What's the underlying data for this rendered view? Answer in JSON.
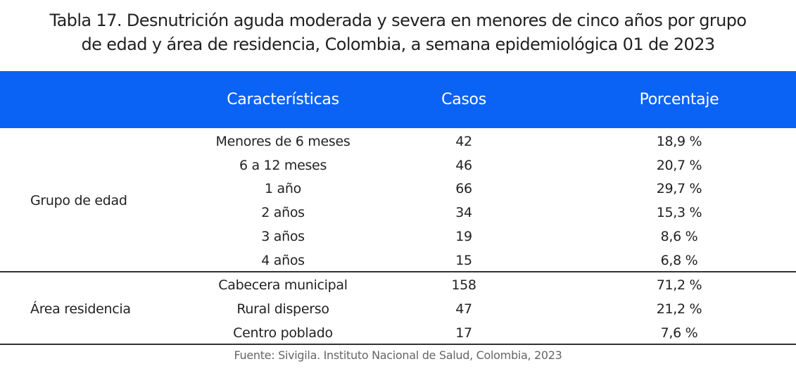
{
  "title": {
    "line1": "Tabla 17. Desnutrición aguda moderada y severa en menores de cinco años por grupo",
    "line2": "de edad y área de residencia, Colombia, a semana epidemiológica 01 de 2023"
  },
  "header": {
    "caracteristicas": "Características",
    "casos": "Casos",
    "porcentaje": "Porcentaje",
    "color": "#0a63f5"
  },
  "groups": [
    {
      "label": "Grupo de edad",
      "rows": [
        {
          "caracteristica": "Menores de 6 meses",
          "casos": "42",
          "porcentaje": "18,9 %"
        },
        {
          "caracteristica": "6 a 12 meses",
          "casos": "46",
          "porcentaje": "20,7 %"
        },
        {
          "caracteristica": "1 año",
          "casos": "66",
          "porcentaje": "29,7 %"
        },
        {
          "caracteristica": "2 años",
          "casos": "34",
          "porcentaje": "15,3 %"
        },
        {
          "caracteristica": "3 años",
          "casos": "19",
          "porcentaje": "8,6 %"
        },
        {
          "caracteristica": "4 años",
          "casos": "15",
          "porcentaje": "6,8 %"
        }
      ]
    },
    {
      "label": "Área residencia",
      "rows": [
        {
          "caracteristica": "Cabecera municipal",
          "casos": "158",
          "porcentaje": "71,2 %"
        },
        {
          "caracteristica": "Rural disperso",
          "casos": "47",
          "porcentaje": "21,2 %"
        },
        {
          "caracteristica": "Centro poblado",
          "casos": "17",
          "porcentaje": "7,6 %"
        }
      ]
    }
  ],
  "footer": "Fuente: Sivigila. Instituto Nacional de Salud, Colombia, 2023"
}
